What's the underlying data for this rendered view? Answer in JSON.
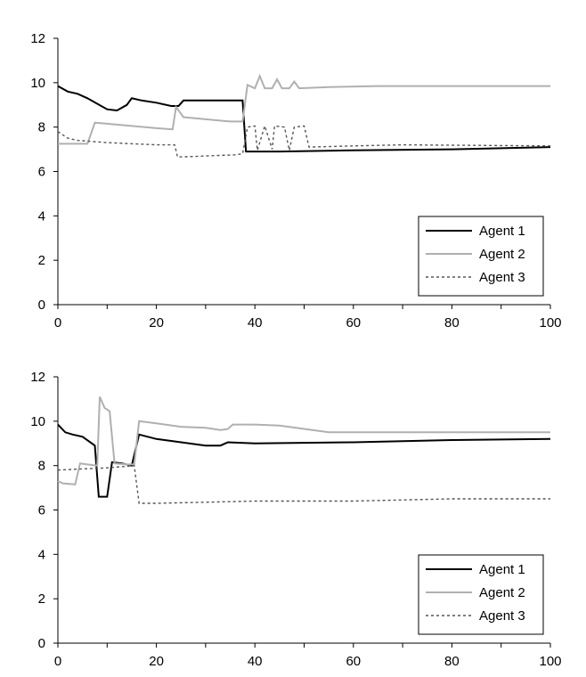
{
  "chart_data": [
    {
      "type": "line",
      "title": "",
      "xlabel": "",
      "ylabel": "",
      "xlim": [
        0,
        100
      ],
      "ylim": [
        0,
        12
      ],
      "x_ticks": [
        0,
        20,
        40,
        60,
        80,
        100
      ],
      "y_ticks": [
        0,
        2,
        4,
        6,
        8,
        10,
        12
      ],
      "grid": false,
      "legend_position": "bottom-right",
      "series": [
        {
          "name": "Agent 1",
          "color": "#000000",
          "style": "solid",
          "points": [
            [
              0,
              9.85
            ],
            [
              2,
              9.6
            ],
            [
              4,
              9.5
            ],
            [
              6,
              9.3
            ],
            [
              8,
              9.05
            ],
            [
              10,
              8.8
            ],
            [
              12,
              8.75
            ],
            [
              14,
              9.0
            ],
            [
              15,
              9.3
            ],
            [
              17,
              9.2
            ],
            [
              20,
              9.1
            ],
            [
              23,
              8.95
            ],
            [
              24.5,
              8.95
            ],
            [
              25.5,
              9.2
            ],
            [
              30,
              9.2
            ],
            [
              36,
              9.2
            ],
            [
              37.5,
              9.2
            ],
            [
              38.2,
              6.9
            ],
            [
              45,
              6.9
            ],
            [
              60,
              6.95
            ],
            [
              80,
              7.0
            ],
            [
              100,
              7.1
            ]
          ]
        },
        {
          "name": "Agent 2",
          "color": "#b0b0b0",
          "style": "solid",
          "points": [
            [
              0,
              7.25
            ],
            [
              6,
              7.25
            ],
            [
              7.5,
              8.2
            ],
            [
              10,
              8.15
            ],
            [
              15,
              8.05
            ],
            [
              20,
              7.95
            ],
            [
              23.3,
              7.9
            ],
            [
              24,
              8.9
            ],
            [
              25.5,
              8.45
            ],
            [
              30,
              8.35
            ],
            [
              35,
              8.25
            ],
            [
              37.5,
              8.25
            ],
            [
              38.5,
              9.9
            ],
            [
              40,
              9.75
            ],
            [
              41,
              10.3
            ],
            [
              42,
              9.75
            ],
            [
              43.5,
              9.75
            ],
            [
              44.5,
              10.15
            ],
            [
              45.5,
              9.75
            ],
            [
              47,
              9.75
            ],
            [
              48,
              10.05
            ],
            [
              49,
              9.75
            ],
            [
              55,
              9.8
            ],
            [
              65,
              9.85
            ],
            [
              100,
              9.85
            ]
          ]
        },
        {
          "name": "Agent 3",
          "color": "#555555",
          "style": "dashed",
          "points": [
            [
              0,
              7.8
            ],
            [
              2,
              7.5
            ],
            [
              4,
              7.4
            ],
            [
              10,
              7.3
            ],
            [
              20,
              7.2
            ],
            [
              23.7,
              7.2
            ],
            [
              24.3,
              6.65
            ],
            [
              30,
              6.7
            ],
            [
              36,
              6.75
            ],
            [
              37.5,
              6.8
            ],
            [
              38.5,
              8.0
            ],
            [
              40,
              8.05
            ],
            [
              40.5,
              6.95
            ],
            [
              42,
              8.05
            ],
            [
              43.5,
              7.0
            ],
            [
              44,
              8.05
            ],
            [
              46,
              8.0
            ],
            [
              47,
              6.95
            ],
            [
              48,
              8.0
            ],
            [
              50,
              8.05
            ],
            [
              51,
              7.1
            ],
            [
              60,
              7.15
            ],
            [
              70,
              7.2
            ],
            [
              100,
              7.15
            ]
          ]
        }
      ]
    },
    {
      "type": "line",
      "title": "",
      "xlabel": "",
      "ylabel": "",
      "xlim": [
        0,
        100
      ],
      "ylim": [
        0,
        12
      ],
      "x_ticks": [
        0,
        20,
        40,
        60,
        80,
        100
      ],
      "y_ticks": [
        0,
        2,
        4,
        6,
        8,
        10,
        12
      ],
      "grid": false,
      "legend_position": "bottom-right",
      "series": [
        {
          "name": "Agent 1",
          "color": "#000000",
          "style": "solid",
          "points": [
            [
              0,
              9.85
            ],
            [
              1.5,
              9.5
            ],
            [
              3,
              9.4
            ],
            [
              5,
              9.3
            ],
            [
              7.5,
              8.9
            ],
            [
              8.3,
              6.6
            ],
            [
              10,
              6.6
            ],
            [
              11,
              8.15
            ],
            [
              13,
              8.1
            ],
            [
              15,
              8.0
            ],
            [
              16.5,
              9.4
            ],
            [
              20,
              9.2
            ],
            [
              25,
              9.05
            ],
            [
              30,
              8.9
            ],
            [
              33,
              8.9
            ],
            [
              34.5,
              9.05
            ],
            [
              40,
              9.0
            ],
            [
              60,
              9.05
            ],
            [
              80,
              9.15
            ],
            [
              100,
              9.2
            ]
          ]
        },
        {
          "name": "Agent 2",
          "color": "#b0b0b0",
          "style": "solid",
          "points": [
            [
              0,
              7.3
            ],
            [
              1,
              7.2
            ],
            [
              3.5,
              7.15
            ],
            [
              4.5,
              8.1
            ],
            [
              6,
              8.05
            ],
            [
              8,
              8.0
            ],
            [
              8.5,
              11.1
            ],
            [
              9.5,
              10.6
            ],
            [
              10.5,
              10.45
            ],
            [
              11.5,
              8.1
            ],
            [
              14,
              8.05
            ],
            [
              15.5,
              8.05
            ],
            [
              16.5,
              10.0
            ],
            [
              20,
              9.9
            ],
            [
              25,
              9.75
            ],
            [
              30,
              9.7
            ],
            [
              33,
              9.6
            ],
            [
              34.5,
              9.65
            ],
            [
              35.5,
              9.85
            ],
            [
              40,
              9.85
            ],
            [
              45,
              9.8
            ],
            [
              55,
              9.5
            ],
            [
              70,
              9.5
            ],
            [
              100,
              9.5
            ]
          ]
        },
        {
          "name": "Agent 3",
          "color": "#555555",
          "style": "dashed",
          "points": [
            [
              0,
              7.8
            ],
            [
              5,
              7.85
            ],
            [
              10,
              7.9
            ],
            [
              13,
              7.95
            ],
            [
              15.5,
              8.0
            ],
            [
              16.5,
              6.3
            ],
            [
              20,
              6.3
            ],
            [
              30,
              6.35
            ],
            [
              40,
              6.4
            ],
            [
              60,
              6.4
            ],
            [
              80,
              6.5
            ],
            [
              100,
              6.5
            ]
          ]
        }
      ]
    }
  ]
}
